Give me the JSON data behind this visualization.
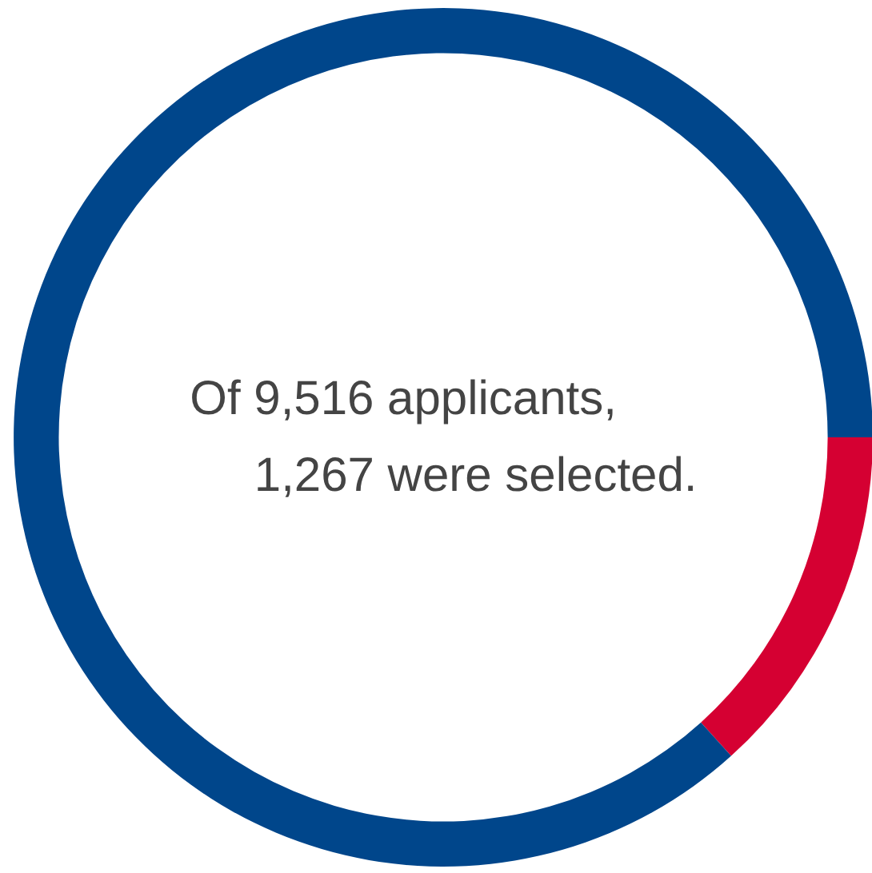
{
  "chart_data": {
    "type": "donut",
    "categories": [
      null,
      null
    ],
    "values": [
      13.31,
      86.69
    ],
    "colors": [
      "#d50032",
      "#00468b"
    ],
    "annotations": [
      "Of 9,516 applicants,",
      "1,267 were selected."
    ]
  }
}
